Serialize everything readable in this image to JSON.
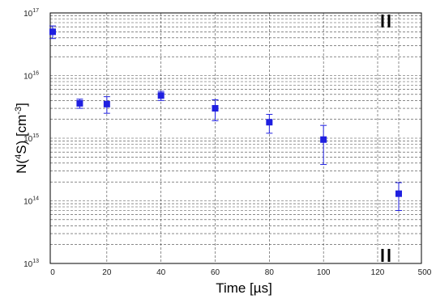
{
  "chart_data": {
    "type": "scatter",
    "title": "",
    "xlabel": "Time [µs]",
    "ylabel": {
      "prefix": "N(",
      "sup1": "4",
      "middle": "S) [cm",
      "sup2": "-3",
      "suffix": "]"
    },
    "yscale": "log",
    "ylim": [
      10000000000000.0,
      1e+17
    ],
    "y_ticks": [
      {
        "base": "10",
        "exp": "13",
        "value": 10000000000000.0
      },
      {
        "base": "10",
        "exp": "14",
        "value": 100000000000000.0
      },
      {
        "base": "10",
        "exp": "15",
        "value": 1000000000000000.0
      },
      {
        "base": "10",
        "exp": "16",
        "value": 1e+16
      },
      {
        "base": "10",
        "exp": "17",
        "value": 1e+17
      }
    ],
    "xlim": [
      0,
      135
    ],
    "x_ticks": [
      "0",
      "20",
      "40",
      "60",
      "80",
      "100",
      "120"
    ],
    "x_break_tick": "500",
    "x_break": {
      "after": 120,
      "before": 500
    },
    "grid": true,
    "marker_color": "#1f1fe0",
    "series": [
      {
        "points": [
          {
            "x": 0,
            "y": 5e+16,
            "y_low": 3.9e+16,
            "y_high": 6.2e+16
          },
          {
            "x": 10,
            "y": 3600000000000000.0,
            "y_low": 3000000000000000.0,
            "y_high": 4200000000000000.0
          },
          {
            "x": 20,
            "y": 3500000000000000.0,
            "y_low": 2500000000000000.0,
            "y_high": 4600000000000000.0
          },
          {
            "x": 40,
            "y": 4800000000000000.0,
            "y_low": 4000000000000000.0,
            "y_high": 5600000000000000.0
          },
          {
            "x": 60,
            "y": 3000000000000000.0,
            "y_low": 1900000000000000.0,
            "y_high": 4100000000000000.0
          },
          {
            "x": 80,
            "y": 1800000000000000.0,
            "y_low": 1200000000000000.0,
            "y_high": 2400000000000000.0
          },
          {
            "x": 100,
            "y": 950000000000000.0,
            "y_low": 380000000000000.0,
            "y_high": 1600000000000000.0
          },
          {
            "x": 500,
            "y": 130000000000000.0,
            "y_low": 70000000000000.0,
            "y_high": 195000000000000.0
          }
        ]
      }
    ]
  }
}
